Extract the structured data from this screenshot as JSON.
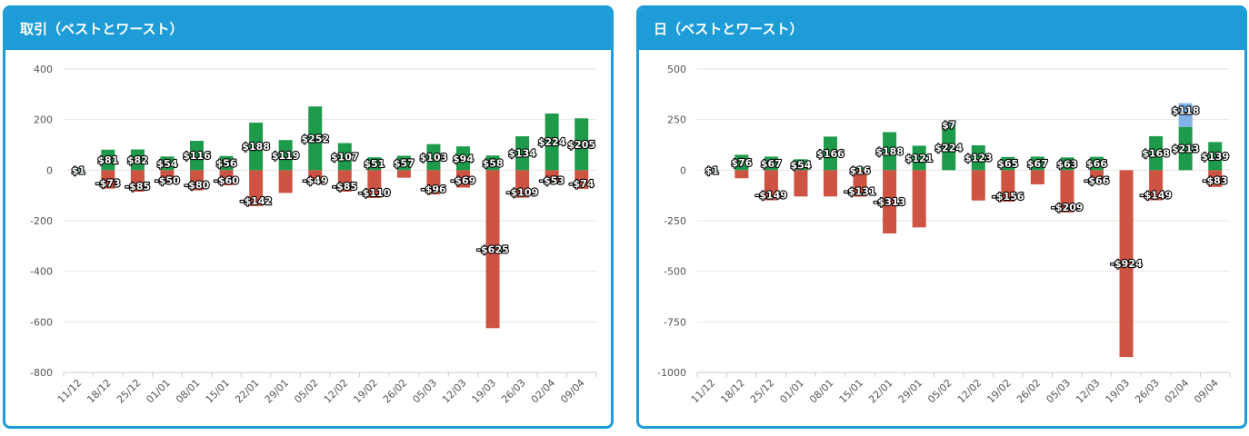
{
  "panels": {
    "trades_title": "取引（ベストとワースト）",
    "days_title": "日（ベストとワースト）"
  },
  "colors": {
    "header": "#1e9cd7",
    "positive": "#1e9a4b",
    "negative": "#cf5342",
    "highlight": "#7fb2e6"
  },
  "chart_data": [
    {
      "type": "bar",
      "title": "取引（ベストとワースト）",
      "categories": [
        "11/12",
        "18/12",
        "25/12",
        "01/01",
        "08/01",
        "15/01",
        "22/01",
        "29/01",
        "05/02",
        "12/02",
        "19/02",
        "26/02",
        "05/03",
        "12/03",
        "19/03",
        "26/03",
        "02/04",
        "09/04"
      ],
      "series": [
        {
          "values": [
            1,
            81,
            82,
            54,
            116,
            56,
            188,
            119,
            252,
            107,
            51,
            57,
            103,
            94,
            58,
            134,
            224,
            205
          ],
          "labels": [
            "$1",
            "$81",
            "$82",
            "$54",
            "$116",
            "$56",
            "$188",
            "$119",
            "$252",
            "$107",
            "$51",
            "$57",
            "$103",
            "$94",
            "$58",
            "$134",
            "$224",
            "$205"
          ]
        },
        {
          "values": [
            0,
            -73,
            -85,
            -50,
            -80,
            -60,
            -142,
            -90,
            -49,
            -85,
            -110,
            -30,
            -96,
            -69,
            -625,
            -109,
            -53,
            -74
          ],
          "labels": [
            "",
            "-$73",
            "-$85",
            "-$50",
            "-$80",
            "-$60",
            "-$142",
            "",
            "-$49",
            "-$85",
            "-$110",
            "",
            "-$96",
            "-$69",
            "-$625",
            "-$109",
            "-$53",
            "-$74"
          ]
        }
      ],
      "ylim": [
        -800,
        400
      ],
      "yticks": [
        400,
        200,
        0,
        -200,
        -400,
        -600,
        -800
      ],
      "grid": true
    },
    {
      "type": "bar",
      "title": "日（ベストとワースト）",
      "categories": [
        "11/12",
        "18/12",
        "25/12",
        "01/01",
        "08/01",
        "15/01",
        "22/01",
        "29/01",
        "05/02",
        "12/02",
        "19/02",
        "26/02",
        "05/03",
        "12/03",
        "19/03",
        "26/03",
        "02/04",
        "09/04"
      ],
      "series": [
        {
          "values": [
            1,
            76,
            67,
            54,
            166,
            16,
            188,
            121,
            224,
            123,
            65,
            67,
            63,
            66,
            0,
            168,
            213,
            139
          ],
          "labels": [
            "$1",
            "$76",
            "$67",
            "$54",
            "$166",
            "$16",
            "$188",
            "$121",
            "$224",
            "$123",
            "$65",
            "$67",
            "$63",
            "$66",
            "",
            "$168",
            "$213",
            "$139"
          ]
        },
        {
          "values": [
            0,
            -40,
            -149,
            -130,
            -130,
            -131,
            -313,
            -283,
            7,
            -150,
            -156,
            -70,
            -209,
            -66,
            -924,
            -149,
            118,
            -83
          ],
          "labels": [
            "",
            "",
            "-$149",
            "",
            "",
            "-$131",
            "-$313",
            "",
            "$7",
            "",
            "-$156",
            "",
            "-$209",
            "-$66",
            "-$924",
            "-$149",
            "$118",
            "-$83"
          ]
        }
      ],
      "ylim": [
        -1000,
        500
      ],
      "yticks": [
        500,
        250,
        0,
        -250,
        -500,
        -750,
        -1000
      ],
      "grid": true
    }
  ]
}
